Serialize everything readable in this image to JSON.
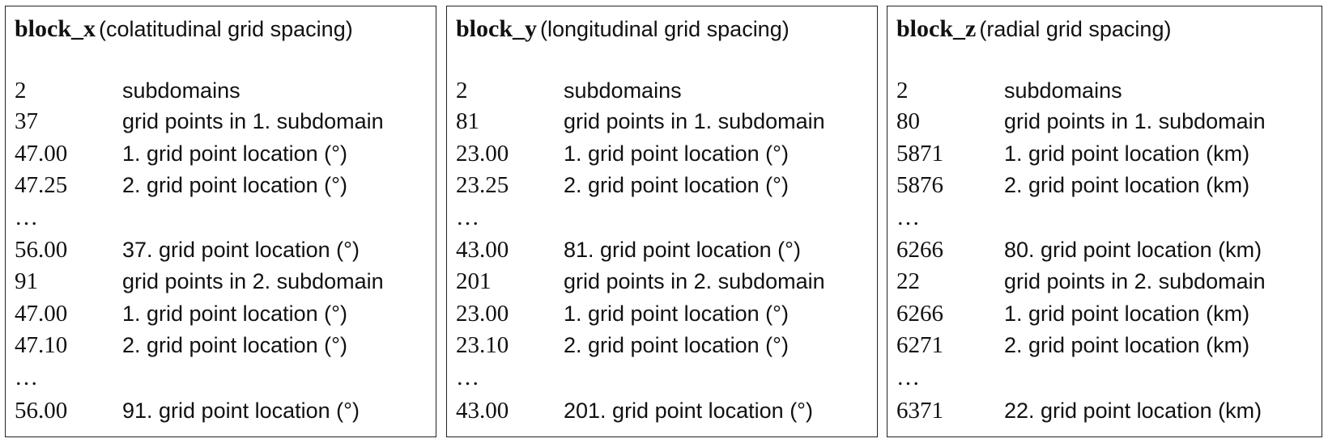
{
  "panels": [
    {
      "name": "block_x",
      "desc": "(colatitudinal grid spacing)",
      "rows": [
        {
          "value": "2",
          "label": "subdomains"
        },
        {
          "value": "37",
          "label": "grid points in 1. subdomain"
        },
        {
          "value": "47.00",
          "label": "1. grid point location (°)"
        },
        {
          "value": "47.25",
          "label": "2. grid point location (°)"
        },
        {
          "value": "…",
          "label": ""
        },
        {
          "value": "56.00",
          "label": "37. grid point location (°)"
        },
        {
          "value": "91",
          "label": "grid points in 2. subdomain"
        },
        {
          "value": "47.00",
          "label": "1. grid point location (°)"
        },
        {
          "value": "47.10",
          "label": "2. grid point location (°)"
        },
        {
          "value": "…",
          "label": ""
        },
        {
          "value": "56.00",
          "label": "91. grid point location (°)"
        }
      ]
    },
    {
      "name": "block_y",
      "desc": "(longitudinal grid spacing)",
      "rows": [
        {
          "value": "2",
          "label": "subdomains"
        },
        {
          "value": "81",
          "label": "grid points in 1. subdomain"
        },
        {
          "value": "23.00",
          "label": "1. grid point location (°)"
        },
        {
          "value": "23.25",
          "label": "2. grid point location (°)"
        },
        {
          "value": "…",
          "label": ""
        },
        {
          "value": "43.00",
          "label": "81. grid point location (°)"
        },
        {
          "value": "201",
          "label": "grid points in 2. subdomain"
        },
        {
          "value": "23.00",
          "label": "1. grid point location (°)"
        },
        {
          "value": "23.10",
          "label": "2. grid point location (°)"
        },
        {
          "value": "…",
          "label": ""
        },
        {
          "value": "43.00",
          "label": "201. grid point location (°)"
        }
      ]
    },
    {
      "name": "block_z",
      "desc": "(radial grid spacing)",
      "rows": [
        {
          "value": "2",
          "label": "subdomains"
        },
        {
          "value": "80",
          "label": "grid points in 1. subdomain"
        },
        {
          "value": "5871",
          "label": "1. grid point location (km)"
        },
        {
          "value": "5876",
          "label": "2. grid point location (km)"
        },
        {
          "value": "…",
          "label": ""
        },
        {
          "value": "6266",
          "label": "80. grid point location (km)"
        },
        {
          "value": "22",
          "label": "grid points in 2. subdomain"
        },
        {
          "value": "6266",
          "label": "1. grid point location (km)"
        },
        {
          "value": "6271",
          "label": "2. grid point location (km)"
        },
        {
          "value": "…",
          "label": ""
        },
        {
          "value": "6371",
          "label": "22. grid point location (km)"
        }
      ]
    }
  ]
}
